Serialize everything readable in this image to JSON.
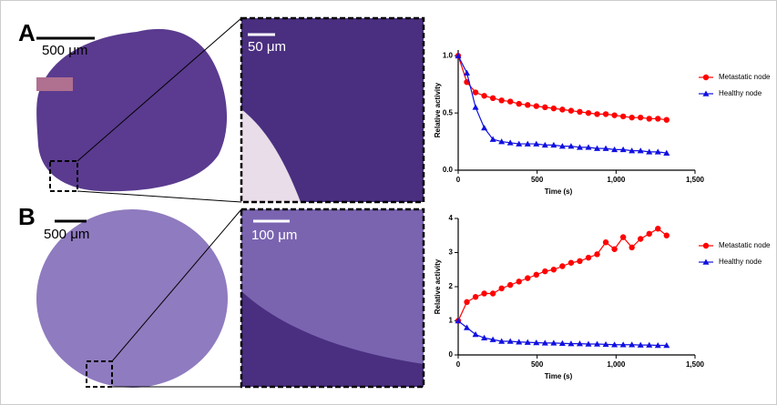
{
  "panels": [
    {
      "label": "A",
      "scale_bars": [
        "500 μm",
        "50 μm"
      ]
    },
    {
      "label": "B",
      "scale_bars": [
        "500 μm",
        "100 μm"
      ]
    }
  ],
  "chart_data": [
    {
      "type": "line",
      "x_label": "Time (s)",
      "y_label": "Relative activity",
      "x": [
        0,
        55,
        110,
        165,
        220,
        275,
        330,
        385,
        440,
        495,
        550,
        605,
        660,
        715,
        770,
        825,
        880,
        935,
        990,
        1045,
        1100,
        1155,
        1210,
        1265,
        1320
      ],
      "series": [
        {
          "name": "Metastatic node",
          "color": "#ff0000",
          "marker": "circle",
          "values": [
            1.0,
            0.77,
            0.68,
            0.65,
            0.63,
            0.61,
            0.6,
            0.58,
            0.57,
            0.56,
            0.55,
            0.54,
            0.53,
            0.52,
            0.51,
            0.5,
            0.49,
            0.49,
            0.48,
            0.47,
            0.46,
            0.46,
            0.45,
            0.45,
            0.44
          ]
        },
        {
          "name": "Healthy node",
          "color": "#1010e0",
          "marker": "triangle",
          "values": [
            1.0,
            0.85,
            0.55,
            0.37,
            0.27,
            0.25,
            0.24,
            0.23,
            0.23,
            0.23,
            0.22,
            0.22,
            0.21,
            0.21,
            0.2,
            0.2,
            0.19,
            0.19,
            0.18,
            0.18,
            0.17,
            0.17,
            0.16,
            0.16,
            0.15
          ]
        }
      ],
      "xlim": [
        0,
        1500
      ],
      "xticks": [
        0,
        500,
        {
          "value": 1000,
          "label": "1,000"
        },
        {
          "value": 1500,
          "label": "1,500"
        }
      ],
      "ylim": [
        0,
        1.05
      ],
      "yticks": [
        {
          "value": 0,
          "label": "0.0"
        },
        0.5,
        {
          "value": 1,
          "label": "1.0"
        }
      ],
      "legend": "top-right"
    },
    {
      "type": "line",
      "x_label": "Time (s)",
      "y_label": "Relative activity",
      "x": [
        0,
        55,
        110,
        165,
        220,
        275,
        330,
        385,
        440,
        495,
        550,
        605,
        660,
        715,
        770,
        825,
        880,
        935,
        990,
        1045,
        1100,
        1155,
        1210,
        1265,
        1320
      ],
      "series": [
        {
          "name": "Metastatic node",
          "color": "#ff0000",
          "marker": "circle",
          "values": [
            1.0,
            1.55,
            1.7,
            1.8,
            1.8,
            1.95,
            2.05,
            2.15,
            2.25,
            2.35,
            2.45,
            2.5,
            2.6,
            2.7,
            2.75,
            2.85,
            2.95,
            3.3,
            3.1,
            3.45,
            3.15,
            3.4,
            3.55,
            3.7,
            3.5
          ]
        },
        {
          "name": "Healthy node",
          "color": "#1010e0",
          "marker": "triangle",
          "values": [
            1.0,
            0.8,
            0.6,
            0.5,
            0.45,
            0.4,
            0.4,
            0.38,
            0.37,
            0.36,
            0.35,
            0.35,
            0.34,
            0.33,
            0.33,
            0.32,
            0.32,
            0.31,
            0.3,
            0.3,
            0.3,
            0.29,
            0.29,
            0.28,
            0.28
          ]
        }
      ],
      "xlim": [
        0,
        1500
      ],
      "xticks": [
        0,
        500,
        {
          "value": 1000,
          "label": "1,000"
        },
        {
          "value": 1500,
          "label": "1,500"
        }
      ],
      "ylim": [
        0,
        4
      ],
      "yticks": [
        0,
        1,
        2,
        3,
        4
      ],
      "legend": "top-right"
    }
  ]
}
